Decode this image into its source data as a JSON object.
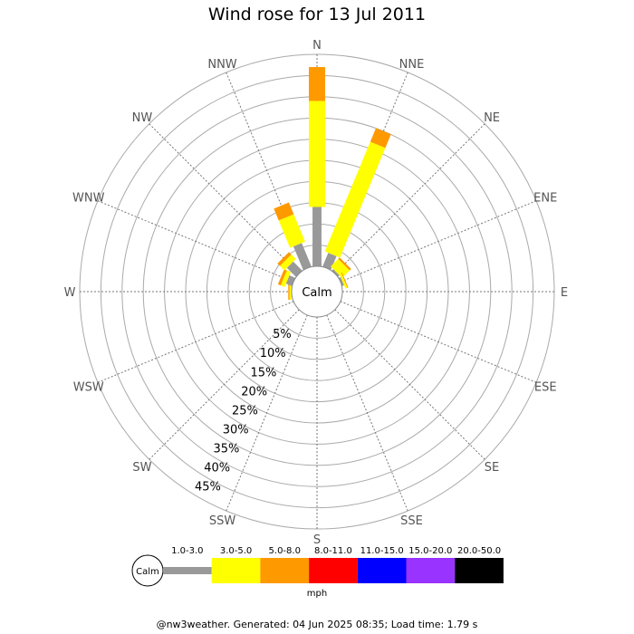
{
  "title": "Wind rose for 13 Jul 2011",
  "footer": "@nw3weather. Generated: 04 Jun 2025 08:35; Load time: 1.79 s",
  "chart_data": {
    "type": "wind-rose",
    "title": "Wind rose for 13 Jul 2011",
    "directions": [
      "N",
      "NNE",
      "NE",
      "ENE",
      "E",
      "ESE",
      "SE",
      "SSE",
      "S",
      "SSW",
      "SW",
      "WSW",
      "W",
      "WNW",
      "NW",
      "NNW"
    ],
    "calm_label": "Calm",
    "radial_ticks": [
      "5%",
      "10%",
      "15%",
      "20%",
      "25%",
      "30%",
      "35%",
      "40%",
      "45%"
    ],
    "radial_tick_values": [
      5,
      10,
      15,
      20,
      25,
      30,
      35,
      40,
      45
    ],
    "radial_max": 50,
    "speed_unit": "mph",
    "speed_bins": [
      {
        "label": "1.0-3.0",
        "color": "#999999"
      },
      {
        "label": "3.0-5.0",
        "color": "#ffff00"
      },
      {
        "label": "5.0-8.0",
        "color": "#ff9900"
      },
      {
        "label": "8.0-11.0",
        "color": "#ff0000"
      },
      {
        "label": "11.0-15.0",
        "color": "#0000ff"
      },
      {
        "label": "15.0-20.0",
        "color": "#9933ff"
      },
      {
        "label": "20.0-50.0",
        "color": "#000000"
      }
    ],
    "frequencies": {
      "N": [
        14.0,
        25.0,
        8.0,
        0,
        0,
        0,
        0
      ],
      "NNE": [
        3.5,
        28.0,
        3.5,
        0,
        0,
        0,
        0
      ],
      "NE": [
        0.5,
        2.5,
        0.5,
        0,
        0,
        0,
        0
      ],
      "ENE": [
        0.5,
        0.5,
        0.2,
        0,
        0,
        0,
        0
      ],
      "E": [
        0,
        0,
        0,
        0,
        0,
        0,
        0
      ],
      "ESE": [
        0,
        0,
        0,
        0,
        0,
        0,
        0
      ],
      "SE": [
        0,
        0,
        0,
        0,
        0,
        0,
        0
      ],
      "SSE": [
        0,
        0,
        0,
        0,
        0,
        0,
        0
      ],
      "S": [
        0,
        0,
        0,
        0,
        0,
        0,
        0
      ],
      "SSW": [
        0,
        0,
        0,
        0,
        0,
        0,
        0
      ],
      "SW": [
        0,
        0,
        0,
        0,
        0,
        0,
        0
      ],
      "WSW": [
        0,
        0,
        0,
        0,
        0,
        0,
        0
      ],
      "W": [
        0,
        0.5,
        0.3,
        0,
        0,
        0,
        0
      ],
      "WNW": [
        1.5,
        1.0,
        0.7,
        0,
        0,
        0,
        0
      ],
      "NW": [
        3.0,
        1.5,
        0.8,
        0,
        0,
        0,
        0
      ],
      "NNW": [
        6.0,
        7.0,
        3.0,
        0,
        0,
        0,
        0
      ]
    }
  }
}
